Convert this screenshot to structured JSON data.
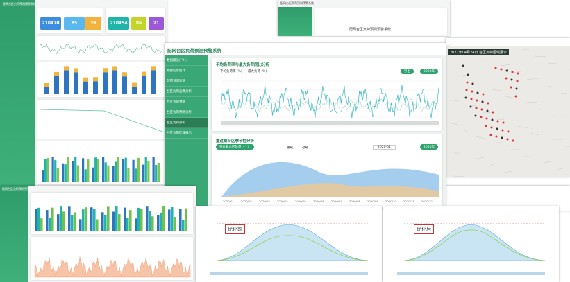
{
  "header": {
    "title": "配网台区负荷预测预警系统"
  },
  "sidebar": {
    "items": [
      "数据概览(F91)",
      "预警信息统计",
      "负荷预测监测",
      "台区负荷画像分析",
      "台区负荷预测",
      "台区负荷预测分析",
      "台区负荷分析",
      "台区负荷区域展示"
    ]
  },
  "summary_cards": [
    "210470",
    "85",
    "39",
    "210454",
    "86",
    "21"
  ],
  "load_rate_panel": {
    "title": "平均负荷率与最大负荷同比分析",
    "legend": [
      "平均负荷率 (%)",
      "最大负荷 (%)"
    ],
    "buttons": [
      "导出",
      "2020年"
    ]
  },
  "seasonal_panel": {
    "title": "重过载台区季节性分析",
    "tab": "重过载台区数量（个）",
    "legend": [
      "重载",
      "过载"
    ],
    "date": "2020-01",
    "button": "2020年",
    "x_labels": [
      "2020/01",
      "2020/02",
      "2020/03",
      "2020/04",
      "2020/05",
      "2020/06",
      "2020/07",
      "2020/08",
      "2020/09",
      "2020/10",
      "2020/11",
      "2020/12"
    ]
  },
  "map_panel": {
    "title": "2022年04月24日 台区负荷区域展示"
  },
  "compare": {
    "before": "优化前",
    "after": "优化后"
  }
}
